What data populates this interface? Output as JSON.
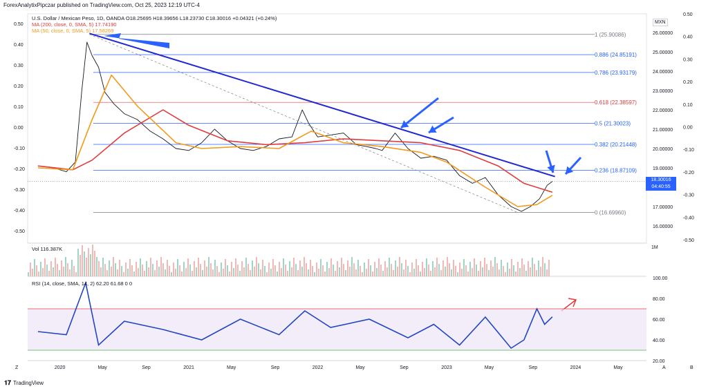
{
  "publisher": "ForexAnalytixPipczar published on TradingView.com, Oct 25, 2023 12:19 UTC-4",
  "legend": {
    "symbol": "U.S. Dollar / Mexican Peso, 1D, OANDA  O18.25695  H18.39656  L18.23730  C18.30016  +0.04321 (+0.24%)",
    "ma200": "MA (200, close, 0, SMA, 5)  17.74190",
    "ma50": "MA (50, close, 0, SMA, 5)  17.58269"
  },
  "currency": "MXN",
  "current_price": "18.30016",
  "countdown": "04:40:55",
  "volume_legend": "Vol  116.387K",
  "rsi_legend": "RSI (14, close, SMA, 14, 2)  62.20  61.68  0  0",
  "footer": "TradingView",
  "chart_data": {
    "type": "line",
    "x_ticks": [
      "2020",
      "May",
      "Sep",
      "2021",
      "May",
      "Sep",
      "2022",
      "May",
      "Sep",
      "2023",
      "May",
      "Sep",
      "2024",
      "May"
    ],
    "price_axis_ticks": [
      "26.00000",
      "25.00000",
      "24.00000",
      "23.00000",
      "22.00000",
      "21.00000",
      "20.00000",
      "19.00000",
      "18.00000",
      "17.00000",
      "16.00000"
    ],
    "left_axis_ticks": [
      "0.50",
      "0.40",
      "0.30",
      "0.20",
      "0.10",
      "0.00",
      "-0.10",
      "-0.20",
      "-0.30",
      "-0.40",
      "-0.50"
    ],
    "right_outer_ticks": [
      "0.50",
      "0.40",
      "0.30",
      "0.20",
      "0.10",
      "0.00",
      "-0.10",
      "-0.20",
      "-0.30",
      "-0.40",
      "-0.50"
    ],
    "volume_axis_tick": "1M",
    "rsi_axis_ticks": [
      "100.00",
      "80.00",
      "60.00",
      "40.00",
      "20.00"
    ],
    "rsi_bands": [
      30,
      70
    ],
    "ylim": [
      16.0,
      26.6
    ],
    "fib_levels": [
      {
        "label": "1 (25.90086)",
        "value": 25.90086,
        "color": "#787b86"
      },
      {
        "label": "0.886 (24.85191)",
        "value": 24.85191,
        "color": "#2962ff"
      },
      {
        "label": "0.786 (23.93179)",
        "value": 23.93179,
        "color": "#2962ff"
      },
      {
        "label": "0.618 (22.38597)",
        "value": 22.38597,
        "color": "#e03b3b"
      },
      {
        "label": "0.5 (21.30023)",
        "value": 21.30023,
        "color": "#2962ff"
      },
      {
        "label": "0.382 (20.21448)",
        "value": 20.21448,
        "color": "#2962ff"
      },
      {
        "label": "0.236 (18.87109)",
        "value": 18.87109,
        "color": "#2962ff"
      },
      {
        "label": "0 (16.69960)",
        "value": 16.6996,
        "color": "#787b86"
      }
    ],
    "series": [
      {
        "name": "U.S. Dollar / Mexican Peso",
        "color": "#131722",
        "x": [
          2019.83,
          2019.95,
          2020.05,
          2020.12,
          2020.17,
          2020.21,
          2020.25,
          2020.3,
          2020.35,
          2020.42,
          2020.5,
          2020.6,
          2020.7,
          2020.8,
          2020.9,
          2021.0,
          2021.1,
          2021.2,
          2021.3,
          2021.4,
          2021.5,
          2021.6,
          2021.7,
          2021.8,
          2021.88,
          2021.93,
          2022.0,
          2022.1,
          2022.2,
          2022.3,
          2022.38,
          2022.45,
          2022.5,
          2022.6,
          2022.7,
          2022.8,
          2022.9,
          2023.0,
          2023.1,
          2023.2,
          2023.3,
          2023.4,
          2023.5,
          2023.58,
          2023.65,
          2023.72,
          2023.78,
          2023.82
        ],
        "values": [
          19.1,
          19.0,
          18.8,
          19.3,
          23.0,
          25.5,
          24.8,
          24.2,
          22.9,
          22.3,
          21.8,
          21.5,
          20.9,
          20.5,
          20.0,
          19.9,
          20.3,
          21.0,
          20.4,
          20.0,
          19.9,
          20.1,
          20.5,
          20.6,
          22.0,
          21.3,
          20.6,
          20.7,
          20.8,
          20.2,
          20.1,
          20.0,
          19.9,
          20.8,
          20.0,
          19.5,
          19.6,
          19.4,
          18.6,
          18.2,
          18.5,
          17.6,
          17.0,
          16.75,
          17.0,
          17.4,
          18.1,
          18.30016
        ]
      },
      {
        "name": "MA (200, close, 0, SMA, 5)",
        "color": "#e03b3b",
        "x": [
          2019.83,
          2020.1,
          2020.25,
          2020.5,
          2020.8,
          2021.0,
          2021.3,
          2021.6,
          2021.9,
          2022.2,
          2022.5,
          2022.8,
          2023.1,
          2023.4,
          2023.6,
          2023.82
        ],
        "values": [
          19.1,
          18.9,
          19.4,
          20.8,
          22.0,
          21.2,
          20.4,
          20.2,
          20.3,
          20.5,
          20.4,
          20.3,
          19.9,
          19.1,
          18.2,
          17.7419
        ]
      },
      {
        "name": "MA (50, close, 0, SMA, 5)",
        "color": "#f29a1a",
        "x": [
          2019.83,
          2020.1,
          2020.25,
          2020.4,
          2020.6,
          2020.9,
          2021.1,
          2021.4,
          2021.7,
          2021.95,
          2022.2,
          2022.5,
          2022.8,
          2023.0,
          2023.3,
          2023.55,
          2023.7,
          2023.82
        ],
        "values": [
          19.0,
          18.9,
          21.5,
          23.8,
          22.2,
          20.3,
          20.0,
          20.1,
          20.0,
          20.9,
          20.3,
          20.1,
          19.8,
          19.3,
          18.0,
          17.0,
          17.1,
          17.58269
        ]
      }
    ],
    "annotations": {
      "trendline": {
        "from": [
          2020.23,
          25.95
        ],
        "to": [
          2023.84,
          18.55
        ],
        "color": "#2128d0"
      },
      "dashed_line": {
        "from": [
          2020.23,
          25.9
        ],
        "to": [
          2023.55,
          16.7
        ],
        "color": "#787b86"
      },
      "arrows": 6
    },
    "rsi": {
      "x": [
        2019.83,
        2020.05,
        2020.2,
        2020.3,
        2020.5,
        2020.8,
        2021.1,
        2021.4,
        2021.7,
        2021.9,
        2022.1,
        2022.4,
        2022.7,
        2022.9,
        2023.1,
        2023.3,
        2023.5,
        2023.6,
        2023.7,
        2023.76,
        2023.82
      ],
      "values": [
        48,
        45,
        95,
        35,
        58,
        50,
        40,
        60,
        45,
        68,
        52,
        60,
        42,
        55,
        35,
        62,
        32,
        40,
        70,
        55,
        62.2
      ]
    }
  }
}
